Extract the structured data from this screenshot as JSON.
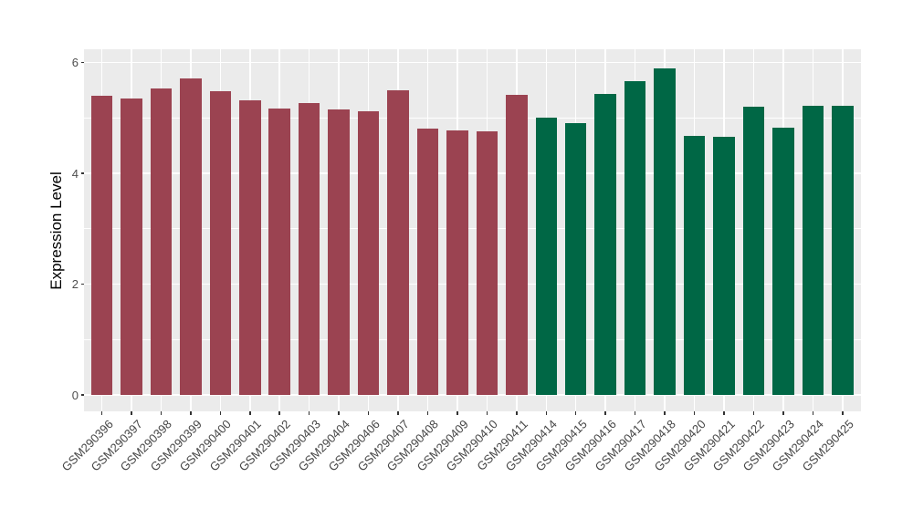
{
  "figure": {
    "background": "#FFFFFF",
    "panel_background": "#EBEBEB",
    "gridline_color": "#FFFFFF",
    "tick_color": "#333333",
    "tick_label_color": "#4D4D4D",
    "axis_title_color": "#000000"
  },
  "chart_data": {
    "type": "bar",
    "title": "",
    "ylabel": "Expression Level",
    "xlabel": "",
    "ylim": [
      0,
      6.25
    ],
    "ytick_labels": [
      "0",
      "2",
      "4",
      "6"
    ],
    "ytick_values": [
      0,
      2,
      4,
      6
    ],
    "minor_gridline_values": [
      1,
      3,
      5
    ],
    "grid": "major and minor horizontal white lines plus vertical white lines at each category, on gray panel",
    "legend_position": "none",
    "bar_group_colors": {
      "left_group": "#9B4351",
      "right_group": "#006745"
    },
    "bars": [
      {
        "label": "GSM290396",
        "value": 5.4,
        "group": "left_group"
      },
      {
        "label": "GSM290397",
        "value": 5.35,
        "group": "left_group"
      },
      {
        "label": "GSM290398",
        "value": 5.53,
        "group": "left_group"
      },
      {
        "label": "GSM290399",
        "value": 5.71,
        "group": "left_group"
      },
      {
        "label": "GSM290400",
        "value": 5.48,
        "group": "left_group"
      },
      {
        "label": "GSM290401",
        "value": 5.32,
        "group": "left_group"
      },
      {
        "label": "GSM290402",
        "value": 5.17,
        "group": "left_group"
      },
      {
        "label": "GSM290403",
        "value": 5.26,
        "group": "left_group"
      },
      {
        "label": "GSM290404",
        "value": 5.15,
        "group": "left_group"
      },
      {
        "label": "GSM290406",
        "value": 5.12,
        "group": "left_group"
      },
      {
        "label": "GSM290407",
        "value": 5.5,
        "group": "left_group"
      },
      {
        "label": "GSM290408",
        "value": 4.8,
        "group": "left_group"
      },
      {
        "label": "GSM290409",
        "value": 4.78,
        "group": "left_group"
      },
      {
        "label": "GSM290410",
        "value": 4.75,
        "group": "left_group"
      },
      {
        "label": "GSM290411",
        "value": 5.41,
        "group": "left_group"
      },
      {
        "label": "GSM290414",
        "value": 5.0,
        "group": "right_group"
      },
      {
        "label": "GSM290415",
        "value": 4.91,
        "group": "right_group"
      },
      {
        "label": "GSM290416",
        "value": 5.43,
        "group": "right_group"
      },
      {
        "label": "GSM290417",
        "value": 5.67,
        "group": "right_group"
      },
      {
        "label": "GSM290418",
        "value": 5.9,
        "group": "right_group"
      },
      {
        "label": "GSM290420",
        "value": 4.67,
        "group": "right_group"
      },
      {
        "label": "GSM290421",
        "value": 4.66,
        "group": "right_group"
      },
      {
        "label": "GSM290422",
        "value": 5.2,
        "group": "right_group"
      },
      {
        "label": "GSM290423",
        "value": 4.82,
        "group": "right_group"
      },
      {
        "label": "GSM290424",
        "value": 5.22,
        "group": "right_group"
      },
      {
        "label": "GSM290425",
        "value": 5.21,
        "group": "right_group"
      }
    ]
  }
}
